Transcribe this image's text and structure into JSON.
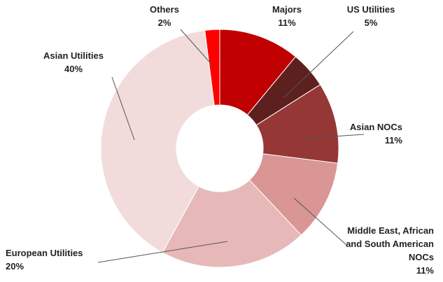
{
  "chart_data": {
    "type": "donut",
    "categories": [
      "Majors",
      "US Utilities",
      "Asian NOCs",
      "Middle East, African and South American NOCs",
      "European Utilities",
      "Asian Utilities",
      "Others"
    ],
    "values": [
      11,
      5,
      11,
      11,
      20,
      40,
      2
    ],
    "value_labels": [
      "11%",
      "5%",
      "11%",
      "11%",
      "20%",
      "40%",
      "2%"
    ],
    "colors": [
      "#c00000",
      "#5e1f1f",
      "#953735",
      "#d99694",
      "#e6b9b8",
      "#f2dcdb",
      "#ff0000"
    ]
  }
}
